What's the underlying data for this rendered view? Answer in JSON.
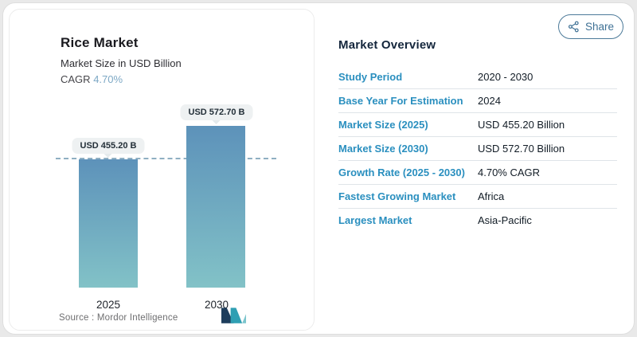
{
  "chart_data": {
    "type": "bar",
    "title": "Rice Market",
    "subtitle": "Market Size in USD Billion",
    "cagr_label": "CAGR",
    "cagr_value": "4.70%",
    "categories": [
      "2025",
      "2030"
    ],
    "values": [
      455.2,
      572.7
    ],
    "value_labels": [
      "USD 455.20 B",
      "USD 572.70 B"
    ],
    "ylabel": "USD Billion",
    "reference_line": 455.2,
    "source": "Source :  Mordor Intelligence",
    "legend": "none",
    "grid": "off"
  },
  "share": {
    "label": "Share"
  },
  "overview": {
    "title": "Market Overview",
    "rows": [
      {
        "label": "Study Period",
        "value": "2020 - 2030"
      },
      {
        "label": "Base Year For Estimation",
        "value": "2024"
      },
      {
        "label": "Market Size (2025)",
        "value": "USD 455.20 Billion"
      },
      {
        "label": "Market Size (2030)",
        "value": "USD 572.70 Billion"
      },
      {
        "label": "Growth Rate (2025 - 2030)",
        "value": "4.70% CAGR"
      },
      {
        "label": "Fastest Growing Market",
        "value": "Africa"
      },
      {
        "label": "Largest Market",
        "value": "Asia-Pacific"
      }
    ]
  },
  "icons": {
    "share": "share-nodes-icon",
    "logo": "mordor-intelligence-logo"
  },
  "colors": {
    "bar_gradient_top": "#5d92ba",
    "bar_gradient_bottom": "#82c2c7",
    "label_blue": "#2a8fbf",
    "share_blue": "#3f7195",
    "cagr_blue": "#7da8c5",
    "dashline": "#8fafc2",
    "heading_navy": "#14263c"
  }
}
